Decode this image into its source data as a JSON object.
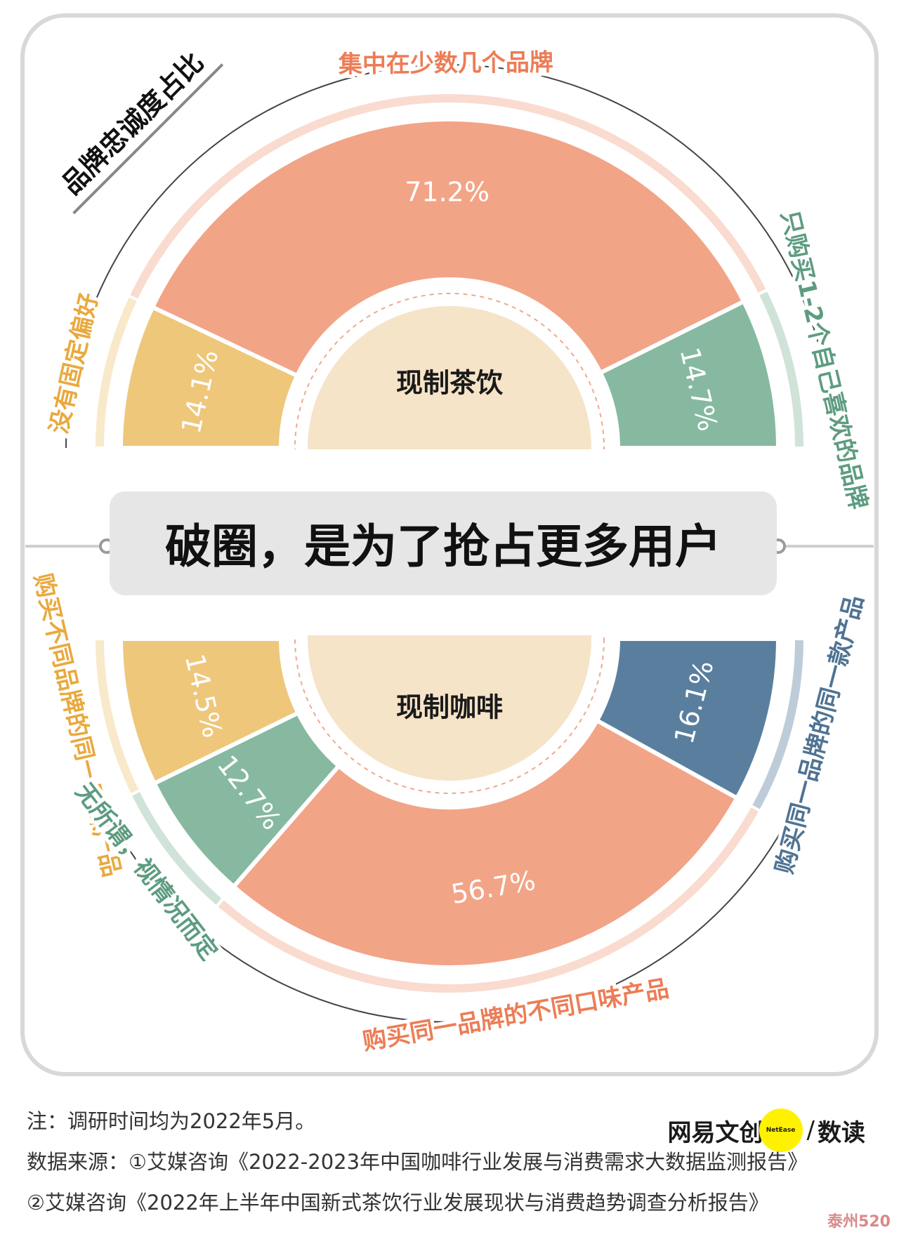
{
  "chart_title": "品牌忠诚度占比",
  "center_banner": "破圈，是为了抢占更多用户",
  "chart_data": [
    {
      "type": "pie",
      "center_label": "现制茶饮",
      "categories": [
        "没有固定偏好",
        "集中在少数几个品牌",
        "只购买1-2个自己喜欢的品牌"
      ],
      "values": [
        14.1,
        71.2,
        14.7
      ],
      "value_labels": [
        "14.1%",
        "71.2%",
        "14.7%"
      ],
      "colors": [
        "#eec77b",
        "#f2a487",
        "#86b9a0"
      ],
      "label_colors": [
        "#e9a93e",
        "#ec7d56",
        "#5d9c80"
      ]
    },
    {
      "type": "pie",
      "center_label": "现制咖啡",
      "categories": [
        "购买不同品牌的同一口味产品",
        "无所谓，视情况而定",
        "购买同一品牌的不同口味产品",
        "购买同一品牌的同一款产品"
      ],
      "values": [
        14.5,
        12.7,
        56.7,
        16.1
      ],
      "value_labels": [
        "14.5%",
        "12.7%",
        "56.7%",
        "16.1%"
      ],
      "colors": [
        "#eec77b",
        "#86b9a0",
        "#f2a487",
        "#5a7f9e"
      ],
      "label_colors": [
        "#e9a93e",
        "#5d9c80",
        "#ec7d56",
        "#4f7393"
      ]
    }
  ],
  "footer": {
    "note": "注：调研时间均为2022年5月。",
    "source1": "数据来源：①艾媒咨询《2022-2023年中国咖啡行业发展与消费需求大数据监测报告》",
    "source2": "②艾媒咨询《2022年上半年中国新式茶饮行业发展现状与消费趋势调查分析报告》"
  },
  "brand": {
    "name": "网易文创",
    "badge": "NetEase",
    "separator": "/",
    "sub": "数读"
  },
  "watermark": "泰州520"
}
